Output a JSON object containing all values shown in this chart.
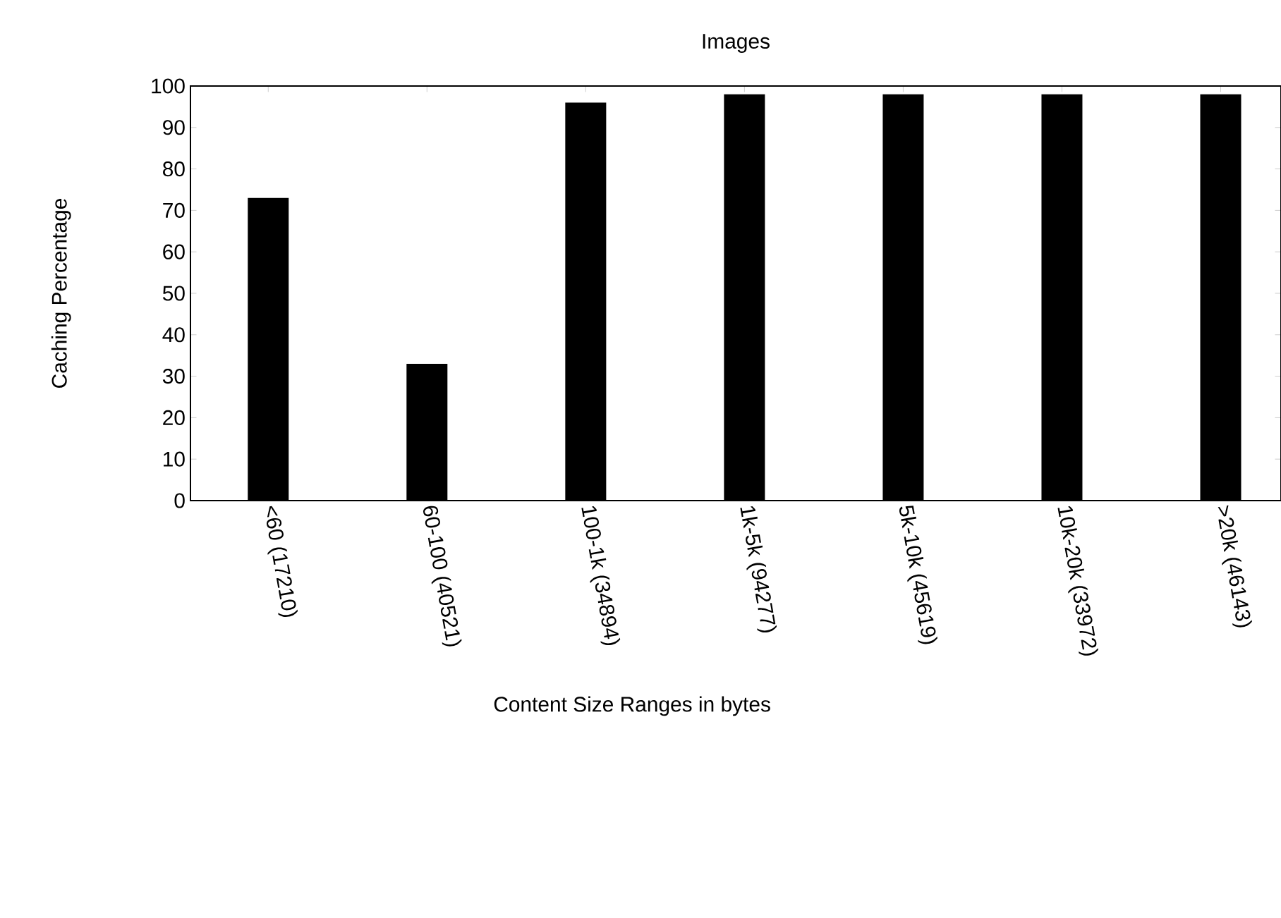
{
  "chart_data": {
    "type": "bar",
    "title": "Images",
    "xlabel": "Content Size Ranges in bytes",
    "ylabel": "Caching Percentage",
    "categories": [
      "<60 (17210)",
      "60-100 (40521)",
      "100-1k (34894)",
      "1k-5k (94277)",
      "5k-10k (45619)",
      "10k-20k (33972)",
      ">20k (46143)"
    ],
    "values": [
      73,
      33,
      96,
      98,
      98,
      98,
      98
    ],
    "color": "#000000",
    "ylim": [
      0,
      100
    ],
    "yticks": [
      0,
      10,
      20,
      30,
      40,
      50,
      60,
      70,
      80,
      90,
      100
    ],
    "grid": false
  }
}
